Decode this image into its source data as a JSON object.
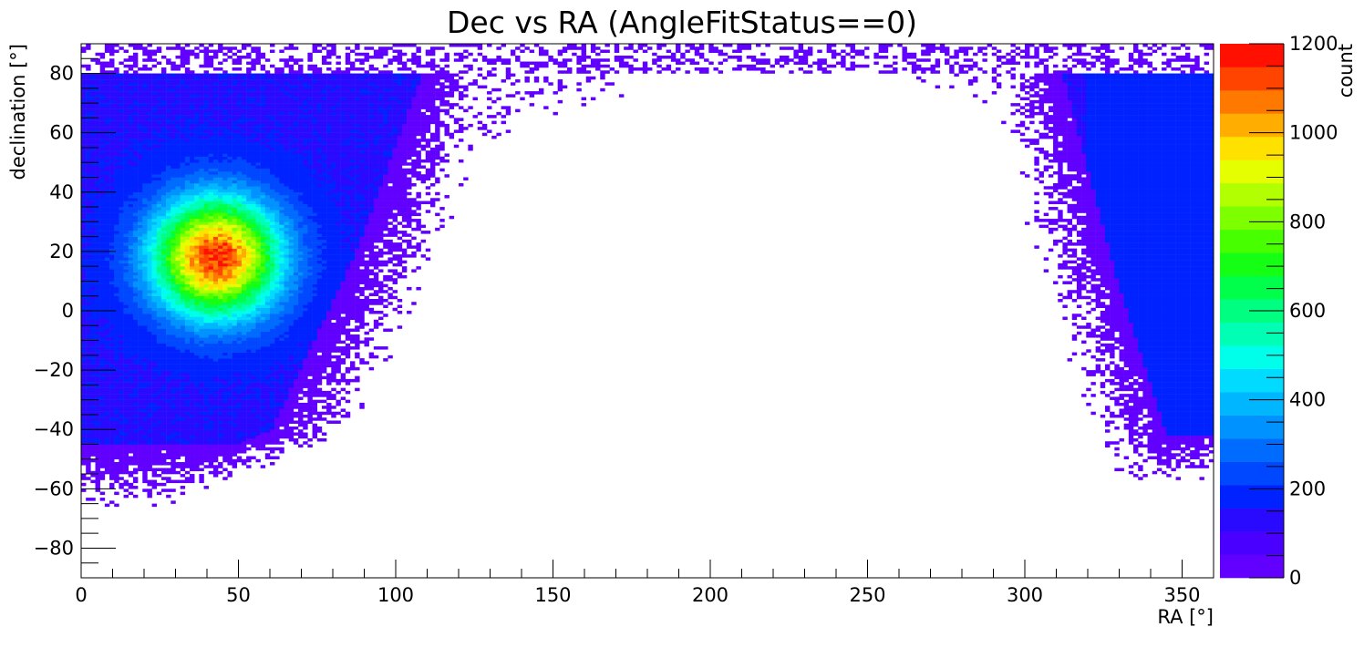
{
  "chart_data": {
    "type": "heatmap",
    "title": "Dec vs RA (AngleFitStatus==0)",
    "xlabel": "RA [°]",
    "ylabel": "declination [°]",
    "zlabel": "count",
    "xlim": [
      0,
      360
    ],
    "ylim": [
      -90,
      90
    ],
    "zlim": [
      0,
      1200
    ],
    "x_ticks": [
      0,
      50,
      100,
      150,
      200,
      250,
      300,
      350
    ],
    "y_ticks": [
      -80,
      -60,
      -40,
      -20,
      0,
      20,
      40,
      60,
      80
    ],
    "z_ticks": [
      0,
      200,
      400,
      600,
      800,
      1000,
      1200
    ],
    "x_tick_labels": [
      "0",
      "50",
      "100",
      "150",
      "200",
      "250",
      "300",
      "350"
    ],
    "y_tick_labels": [
      "−80",
      "−60",
      "−40",
      "−20",
      "0",
      "20",
      "40",
      "60",
      "80"
    ],
    "z_tick_labels": [
      "0",
      "200",
      "400",
      "600",
      "800",
      "1000",
      "1200"
    ],
    "grid": false,
    "colorbar": "right",
    "peak": {
      "ra": 43,
      "dec": 18,
      "count": 1150
    },
    "features": [
      {
        "name": "hotspot",
        "ra_center": 43,
        "dec_center": 18,
        "peak_count": 1150
      },
      {
        "name": "populated-sky",
        "ra_range": [
          0,
          110
        ],
        "dec_range": [
          -55,
          80
        ]
      },
      {
        "name": "populated-sky-wrap",
        "ra_range": [
          320,
          360
        ],
        "dec_range": [
          -55,
          80
        ]
      },
      {
        "name": "empty-region",
        "ra_range": [
          150,
          320
        ],
        "dec_range": [
          -90,
          70
        ]
      }
    ],
    "palette": [
      "#6100ff",
      "#4a00ff",
      "#2a0aff",
      "#0022ff",
      "#0048ff",
      "#006cff",
      "#0093ff",
      "#00b7ff",
      "#00dbff",
      "#00ffea",
      "#00ffb5",
      "#00ff80",
      "#00ff4a",
      "#14ff14",
      "#48ff00",
      "#7dff00",
      "#b1ff00",
      "#e6ff00",
      "#ffe100",
      "#ffad00",
      "#ff7800",
      "#ff4400",
      "#ff1000"
    ]
  }
}
